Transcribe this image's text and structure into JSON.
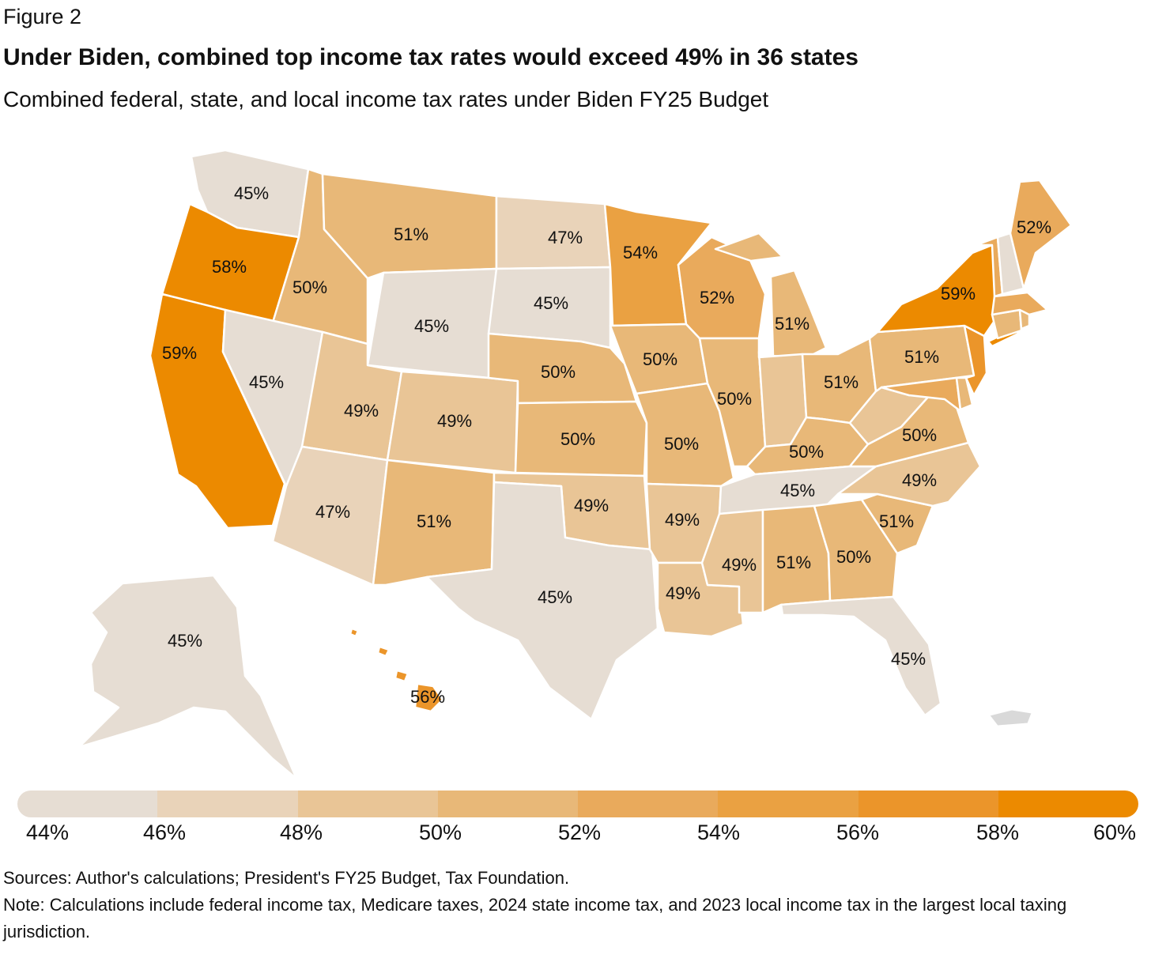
{
  "header": {
    "figure_label": "Figure 2",
    "title": "Under Biden, combined top income tax rates would exceed 49% in 36 states",
    "subtitle": "Combined federal, state, and local income tax rates under Biden FY25 Budget"
  },
  "colors": {
    "scale": [
      "#e6ddd3",
      "#e9d3b9",
      "#e9c596",
      "#e8b878",
      "#e9aa5c",
      "#eaa142",
      "#eb952a",
      "#ec8a00"
    ],
    "territory": "#d9d9d9",
    "border": "#ffffff"
  },
  "legend": {
    "ticks": [
      "44%",
      "46%",
      "48%",
      "50%",
      "52%",
      "54%",
      "56%",
      "58%",
      "60%"
    ]
  },
  "states": [
    {
      "id": "WA",
      "rate": 45,
      "label": "45%"
    },
    {
      "id": "OR",
      "rate": 58,
      "label": "58%"
    },
    {
      "id": "CA",
      "rate": 59,
      "label": "59%"
    },
    {
      "id": "ID",
      "rate": 50,
      "label": "50%"
    },
    {
      "id": "NV",
      "rate": 45,
      "label": "45%"
    },
    {
      "id": "MT",
      "rate": 51,
      "label": "51%"
    },
    {
      "id": "WY",
      "rate": 45,
      "label": "45%"
    },
    {
      "id": "UT",
      "rate": 49,
      "label": "49%"
    },
    {
      "id": "AZ",
      "rate": 47,
      "label": "47%"
    },
    {
      "id": "CO",
      "rate": 49,
      "label": "49%"
    },
    {
      "id": "NM",
      "rate": 51,
      "label": "51%"
    },
    {
      "id": "ND",
      "rate": 47,
      "label": "47%"
    },
    {
      "id": "SD",
      "rate": 45,
      "label": "45%"
    },
    {
      "id": "NE",
      "rate": 50,
      "label": "50%"
    },
    {
      "id": "KS",
      "rate": 50,
      "label": "50%"
    },
    {
      "id": "OK",
      "rate": 49,
      "label": "49%"
    },
    {
      "id": "TX",
      "rate": 45,
      "label": "45%"
    },
    {
      "id": "MN",
      "rate": 54,
      "label": "54%"
    },
    {
      "id": "IA",
      "rate": 50,
      "label": "50%"
    },
    {
      "id": "MO",
      "rate": 50,
      "label": "50%"
    },
    {
      "id": "AR",
      "rate": 49,
      "label": "49%"
    },
    {
      "id": "LA",
      "rate": 49,
      "label": "49%"
    },
    {
      "id": "WI",
      "rate": 52,
      "label": "52%"
    },
    {
      "id": "IL",
      "rate": 50,
      "label": "50%"
    },
    {
      "id": "MI",
      "rate": 51,
      "label": "51%"
    },
    {
      "id": "IN",
      "rate": 48,
      "label": ""
    },
    {
      "id": "OH",
      "rate": 51,
      "label": "51%"
    },
    {
      "id": "KY",
      "rate": 50,
      "label": "50%"
    },
    {
      "id": "TN",
      "rate": 45,
      "label": "45%"
    },
    {
      "id": "MS",
      "rate": 49,
      "label": "49%"
    },
    {
      "id": "AL",
      "rate": 51,
      "label": "51%"
    },
    {
      "id": "GA",
      "rate": 50,
      "label": "50%"
    },
    {
      "id": "FL",
      "rate": 45,
      "label": "45%"
    },
    {
      "id": "SC",
      "rate": 51,
      "label": "51%"
    },
    {
      "id": "NC",
      "rate": 49,
      "label": "49%"
    },
    {
      "id": "VA",
      "rate": 50,
      "label": "50%"
    },
    {
      "id": "WV",
      "rate": 48,
      "label": ""
    },
    {
      "id": "PA",
      "rate": 51,
      "label": "51%"
    },
    {
      "id": "NY",
      "rate": 59,
      "label": "59%"
    },
    {
      "id": "NJ",
      "rate": 56,
      "label": ""
    },
    {
      "id": "MD",
      "rate": 53,
      "label": ""
    },
    {
      "id": "DE",
      "rate": 51,
      "label": ""
    },
    {
      "id": "CT",
      "rate": 51,
      "label": ""
    },
    {
      "id": "RI",
      "rate": 50,
      "label": ""
    },
    {
      "id": "MA",
      "rate": 53,
      "label": ""
    },
    {
      "id": "VT",
      "rate": 53,
      "label": ""
    },
    {
      "id": "NH",
      "rate": 45,
      "label": ""
    },
    {
      "id": "ME",
      "rate": 52,
      "label": "52%"
    },
    {
      "id": "AK",
      "rate": 45,
      "label": "45%"
    },
    {
      "id": "HI",
      "rate": 56,
      "label": "56%"
    }
  ],
  "footer": {
    "sources": "Sources: Author's calculations; President's FY25 Budget, Tax Foundation.",
    "note": "Note: Calculations include federal income tax, Medicare taxes, 2024 state income tax, and 2023 local income tax in the largest local taxing jurisdiction."
  }
}
